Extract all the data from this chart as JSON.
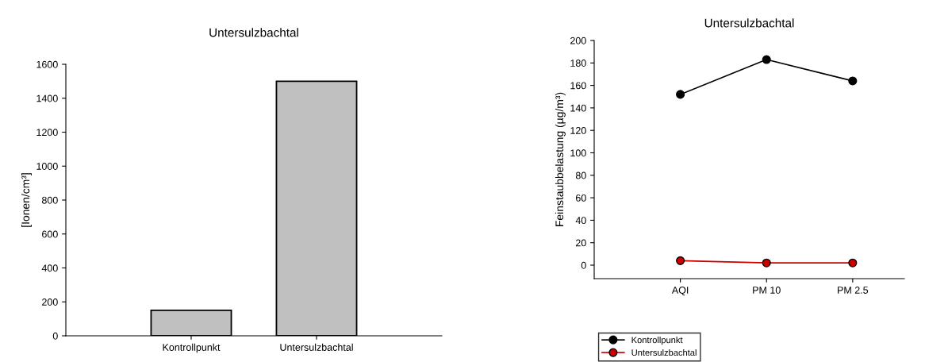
{
  "chart_data": [
    {
      "type": "bar",
      "title": "Untersulzbachtal",
      "ylabel": "[Ionen/cm³]",
      "categories": [
        "Kontrollpunkt",
        "Untersulzbachtal"
      ],
      "values": [
        150,
        1500
      ],
      "colors": [
        "#c0c0c0",
        "#c0c0c0"
      ],
      "ylim": [
        0,
        1600
      ],
      "yticks": [
        0,
        200,
        400,
        600,
        800,
        1000,
        1200,
        1400,
        1600
      ],
      "grid": false
    },
    {
      "type": "line",
      "title": "Untersulzbachtal",
      "ylabel": "Feinstaubbelastung (µg/m³)",
      "categories": [
        "AQI",
        "PM 10",
        "PM 2.5"
      ],
      "series": [
        {
          "name": "Kontrollpunkt",
          "color": "#000000",
          "values": [
            152,
            183,
            164
          ]
        },
        {
          "name": "Untersulzbachtal",
          "color": "#cc0000",
          "values": [
            4,
            2,
            2
          ]
        }
      ],
      "ylim": [
        -12,
        200
      ],
      "yticks": [
        0,
        20,
        40,
        60,
        80,
        100,
        120,
        140,
        160,
        180,
        200
      ],
      "marker": "circle",
      "line_style": "solid",
      "legend": "bottom left",
      "grid": false
    }
  ]
}
